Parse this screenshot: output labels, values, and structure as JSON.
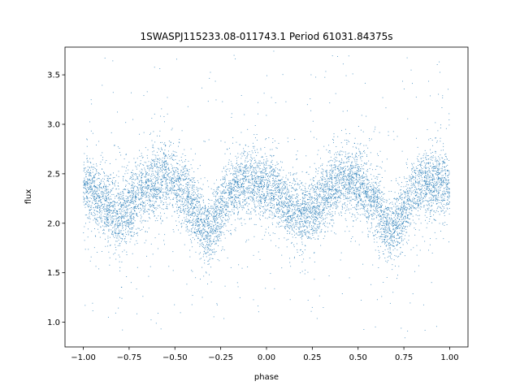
{
  "chart_data": {
    "type": "scatter",
    "title": "1SWASPJ115233.08-011743.1 Period 61031.84375s",
    "xlabel": "phase",
    "ylabel": "flux",
    "xlim": [
      -1.1,
      1.1
    ],
    "ylim": [
      0.75,
      3.78
    ],
    "xticks": [
      -1.0,
      -0.75,
      -0.5,
      -0.25,
      0.0,
      0.25,
      0.5,
      0.75,
      1.0
    ],
    "xtick_labels": [
      "−1.00",
      "−0.75",
      "−0.50",
      "−0.25",
      "0.00",
      "0.25",
      "0.50",
      "0.75",
      "1.00"
    ],
    "yticks": [
      1.0,
      1.5,
      2.0,
      2.5,
      3.0,
      3.5
    ],
    "ytick_labels": [
      "1.0",
      "1.5",
      "2.0",
      "2.5",
      "3.0",
      "3.5"
    ],
    "grid": false,
    "marker_color": "#1f77b4",
    "series": [
      {
        "x": [
          -1.0,
          -0.95,
          -0.9,
          -0.85,
          -0.8,
          -0.75,
          -0.7,
          -0.65,
          -0.6,
          -0.55,
          -0.5,
          -0.45,
          -0.4,
          -0.35,
          -0.32,
          -0.3,
          -0.25,
          -0.2,
          -0.15,
          -0.1,
          -0.05,
          0.0,
          0.05,
          0.1,
          0.15,
          0.2,
          0.25,
          0.3,
          0.35,
          0.4,
          0.45,
          0.5,
          0.55,
          0.6,
          0.65,
          0.68,
          0.7,
          0.75,
          0.8,
          0.85,
          0.9,
          0.95,
          1.0
        ],
        "y": [
          2.38,
          2.33,
          2.22,
          2.12,
          2.08,
          2.15,
          2.27,
          2.37,
          2.43,
          2.45,
          2.4,
          2.3,
          2.15,
          1.98,
          1.92,
          1.95,
          2.13,
          2.3,
          2.4,
          2.42,
          2.4,
          2.37,
          2.32,
          2.22,
          2.12,
          2.08,
          2.13,
          2.25,
          2.36,
          2.42,
          2.44,
          2.4,
          2.3,
          2.16,
          1.98,
          1.92,
          1.95,
          2.13,
          2.3,
          2.38,
          2.41,
          2.42,
          2.4
        ]
      }
    ]
  }
}
